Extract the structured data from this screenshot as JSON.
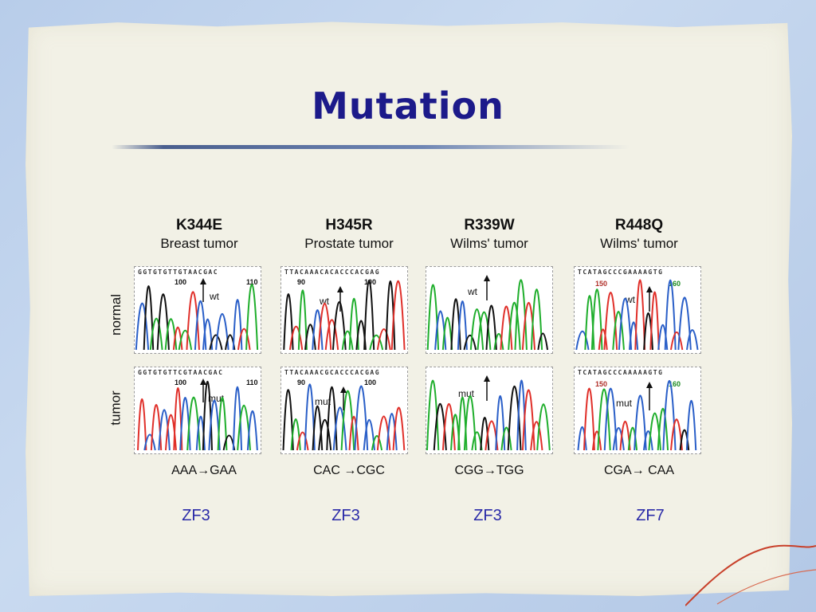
{
  "title": "Mutation",
  "row_labels": {
    "normal": "normal",
    "tumor": "tumor"
  },
  "panels": [
    {
      "mutation": "K344E",
      "tumor": "Breast tumor",
      "normal_seq": "GGTGTGTTGTAACGAC",
      "tumor_seq": "GGTGTGTTCGTAACGAC",
      "normal_marker": "wt",
      "tumor_marker": "mut",
      "pos_a": "100",
      "pos_b": "110",
      "codon_change": "AAA→GAA",
      "zinc_finger": "ZF3"
    },
    {
      "mutation": "H345R",
      "tumor": "Prostate tumor",
      "normal_seq": "TTACAAACACACCCACGAG",
      "tumor_seq": "TTACAAACGCACCCACGAG",
      "normal_marker": "wt",
      "tumor_marker": "mut",
      "pos_a": "90",
      "pos_b": "100",
      "codon_change": "CAC →CGC",
      "zinc_finger": "ZF3"
    },
    {
      "mutation": "R339W",
      "tumor": "Wilms' tumor",
      "normal_seq": "",
      "tumor_seq": "",
      "normal_marker": "wt",
      "tumor_marker": "mut",
      "pos_a": "",
      "pos_b": "",
      "codon_change": "CGG→TGG",
      "zinc_finger": "ZF3"
    },
    {
      "mutation": "R448Q",
      "tumor": "Wilms' tumor",
      "normal_seq": "TCATAGCCCGAAAAGTG",
      "tumor_seq": "TCATAGCCCAAAAAGTG",
      "normal_marker": "wt",
      "tumor_marker": "mut",
      "pos_a": "150",
      "pos_b": "160",
      "codon_change": "CGA→ CAA",
      "zinc_finger": "ZF7"
    }
  ],
  "colors": {
    "title": "#1c1a8a",
    "zf": "#2a2aa8",
    "trace_red": "#e0302a",
    "trace_blue": "#2a5fc8",
    "trace_green": "#1fae2c",
    "trace_black": "#111111"
  }
}
